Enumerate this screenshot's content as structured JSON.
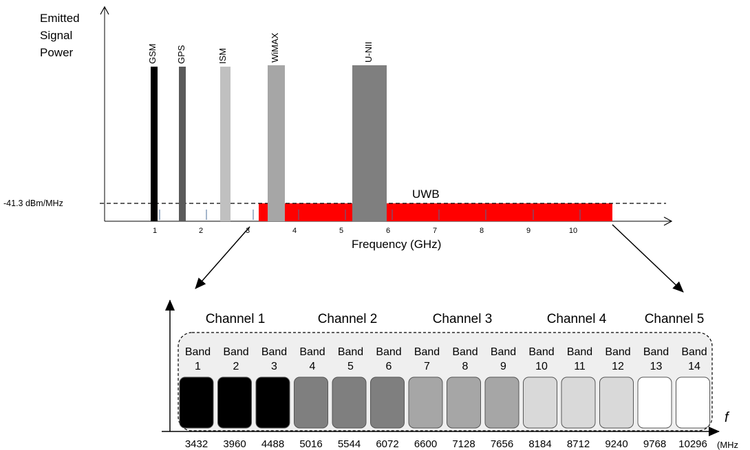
{
  "spectrum": {
    "y_axis_label": [
      "Emitted",
      "Signal",
      "Power"
    ],
    "x_axis_label": "Frequency (GHz)",
    "limit_label": "-41.3 dBm/MHz",
    "uwb_label": "UWB",
    "ticks": [
      "1",
      "2",
      "3",
      "4",
      "5",
      "6",
      "7",
      "8",
      "9",
      "10"
    ],
    "uwb_color": "#ff0000",
    "services": [
      {
        "label": "GSM",
        "color": "#000000"
      },
      {
        "label": "GPS",
        "color": "#5a5a5a"
      },
      {
        "label": "ISM",
        "color": "#c0c0c0"
      },
      {
        "label": "WiMAX",
        "color": "#a6a6a6"
      },
      {
        "label": "U-NII",
        "color": "#7f7f7f"
      }
    ]
  },
  "bands": {
    "axis_symbol": "f",
    "unit": "(MHz",
    "channels": [
      "Channel 1",
      "Channel 2",
      "Channel 3",
      "Channel 4",
      "Channel 5"
    ],
    "band_word": "Band",
    "band_numbers": [
      "1",
      "2",
      "3",
      "4",
      "5",
      "6",
      "7",
      "8",
      "9",
      "10",
      "11",
      "12",
      "13",
      "14"
    ],
    "frequencies": [
      "3432",
      "3960",
      "4488",
      "5016",
      "5544",
      "6072",
      "6600",
      "7128",
      "7656",
      "8184",
      "8712",
      "9240",
      "9768",
      "10296"
    ],
    "band_colors": [
      "#000000",
      "#000000",
      "#000000",
      "#7f7f7f",
      "#7f7f7f",
      "#7f7f7f",
      "#a6a6a6",
      "#a6a6a6",
      "#a6a6a6",
      "#d9d9d9",
      "#d9d9d9",
      "#d9d9d9",
      "#ffffff",
      "#ffffff"
    ]
  }
}
